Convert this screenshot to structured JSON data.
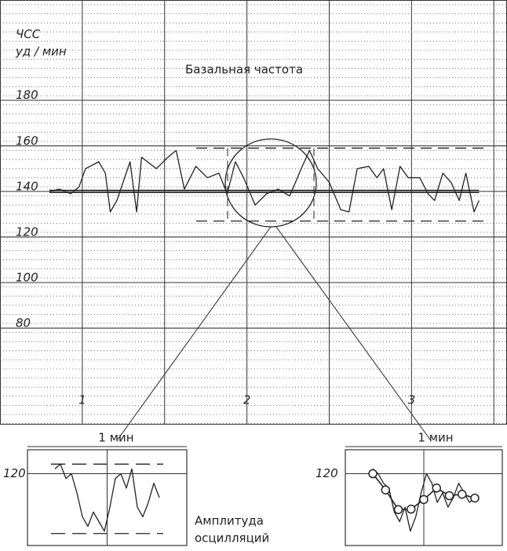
{
  "chart_data": [
    {
      "type": "line",
      "y_label": "ЧСС",
      "y_unit": "уд / мин",
      "annotation": "Базальная частота",
      "x": [
        0.8,
        0.86,
        0.93,
        0.98,
        1.02,
        1.1,
        1.14,
        1.17,
        1.21,
        1.29,
        1.33,
        1.36,
        1.45,
        1.52,
        1.57,
        1.62,
        1.69,
        1.76,
        1.83,
        1.88,
        1.93,
        1.98,
        2.05,
        2.12,
        2.19,
        2.26,
        2.33,
        2.38,
        2.43,
        2.5,
        2.57,
        2.62,
        2.67,
        2.74,
        2.79,
        2.83,
        2.88,
        2.93,
        2.98,
        3.05,
        3.1,
        3.14,
        3.19,
        3.24,
        3.29,
        3.33,
        3.38,
        3.41
      ],
      "values": [
        140,
        141,
        139,
        142,
        150,
        153,
        148,
        131,
        136,
        153,
        131,
        155,
        150,
        155,
        158,
        141,
        151,
        146,
        148,
        139,
        153,
        146,
        134,
        139,
        141,
        138,
        150,
        158,
        150,
        144,
        132,
        131,
        150,
        151,
        146,
        150,
        132,
        151,
        146,
        146,
        139,
        136,
        148,
        144,
        136,
        148,
        131,
        136
      ],
      "color": "#222",
      "baseline": 140,
      "amplitude_band": [
        159,
        127
      ],
      "xlim": [
        0.5,
        3.58
      ],
      "ylim": [
        38,
        224
      ],
      "xticks": [
        1,
        2,
        3
      ],
      "yticks": [
        80,
        100,
        120,
        140,
        160,
        180
      ],
      "grid": true
    },
    {
      "type": "line",
      "title": "1 мин",
      "values": [
        121,
        122,
        119,
        120,
        116,
        111,
        109,
        112,
        110,
        108,
        113,
        119,
        120,
        117,
        121,
        113,
        111,
        114,
        118,
        115
      ],
      "color": "#222",
      "amplitude_band": [
        122,
        107.5
      ],
      "annotation": [
        "Амплитуда",
        "осцилляций"
      ],
      "ylim": [
        105,
        125
      ],
      "yticks": [
        120
      ]
    },
    {
      "type": "line",
      "title": "1 мин",
      "values": [
        121,
        120,
        118,
        117,
        112,
        110,
        113,
        108,
        111,
        116,
        120,
        118,
        114,
        116,
        113,
        115,
        118,
        116,
        114,
        115
      ],
      "points": [
        120,
        116.6,
        112.5,
        112.6,
        114.6,
        117,
        115.4,
        115.7,
        114.9
      ],
      "color": "#222",
      "ylim": [
        105,
        125
      ],
      "yticks": [
        120
      ]
    }
  ]
}
